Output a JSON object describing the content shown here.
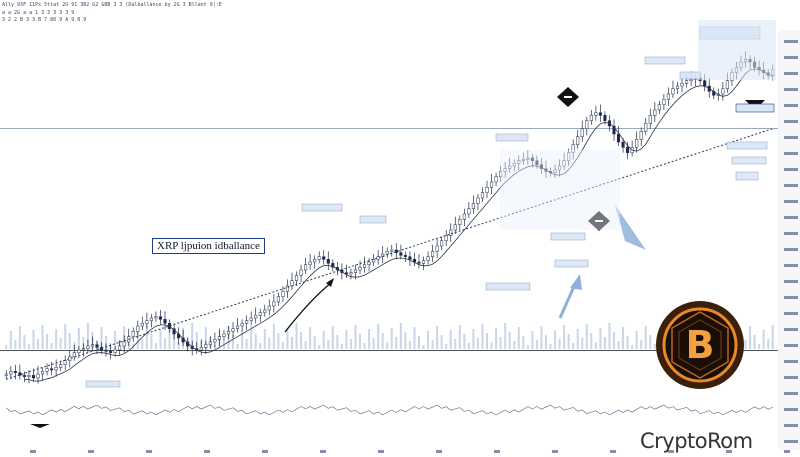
{
  "header": {
    "line1": "Ally 93F 11Px  5ttat 2G 91 3B2 G2 GBB 3 3 (Dalballance by 2G 3 Bllant 9|:E",
    "line2": "a a 2G  a  a 1 3  3  3  3 3 9",
    "line3": "3 2  2 B 3  3 B 7 80 9 A 9 8 9"
  },
  "title_box": {
    "text": "XRP ljpuion idballance"
  },
  "brand": {
    "text": "CryptoRom",
    "logo_symbol": "B",
    "logo_icon": "bitcoin-coin-icon",
    "logo_colors": {
      "outer": "#3a1f0a",
      "ring": "#e8892a",
      "inner": "#1a0f06",
      "glyph": "#f2a040"
    }
  },
  "chart_data": {
    "type": "candlestick",
    "title": "XRP ljpuion idballance",
    "candles_close": [
      42,
      44,
      43,
      41,
      40,
      41,
      39,
      42,
      44,
      46,
      45,
      47,
      49,
      52,
      55,
      58,
      60,
      61,
      63,
      64,
      62,
      60,
      59,
      58,
      60,
      63,
      66,
      70,
      74,
      78,
      80,
      82,
      84,
      85,
      83,
      80,
      76,
      72,
      69,
      66,
      63,
      61,
      60,
      62,
      64,
      66,
      68,
      70,
      72,
      74,
      76,
      78,
      80,
      82,
      84,
      86,
      88,
      90,
      93,
      96,
      100,
      104,
      108,
      112,
      116,
      120,
      124,
      126,
      128,
      130,
      128,
      125,
      122,
      120,
      118,
      117,
      118,
      120,
      122,
      124,
      126,
      128,
      130,
      132,
      134,
      135,
      133,
      131,
      130,
      128,
      126,
      125,
      127,
      130,
      134,
      138,
      142,
      146,
      150,
      154,
      158,
      162,
      166,
      170,
      174,
      178,
      182,
      186,
      190,
      194,
      196,
      198,
      200,
      202,
      203,
      204,
      202,
      199,
      196,
      194,
      193,
      195,
      198,
      202,
      208,
      214,
      220,
      226,
      232,
      236,
      238,
      236,
      232,
      228,
      222,
      216,
      212,
      208,
      212,
      218,
      224,
      230,
      236,
      240,
      244,
      248,
      252,
      256,
      258,
      260,
      262,
      263,
      264,
      262,
      258,
      254,
      251,
      252,
      256,
      262,
      268,
      272,
      276,
      278,
      276,
      272,
      270,
      268,
      266,
      270
    ],
    "series": [
      {
        "name": "",
        "values": []
      }
    ],
    "annotations_labels": [
      "XRP ljpuion idballance"
    ],
    "trendline": {
      "from": [
        0,
        38
      ],
      "to": [
        169,
        226
      ]
    },
    "ylim": [
      0,
      300
    ],
    "grid": false,
    "legend": "none",
    "colors": {
      "candle": "#1d2b4a",
      "trend": "#2c3a5e",
      "accent": "#8fb0d8",
      "zone": "#d9e6f5"
    }
  }
}
